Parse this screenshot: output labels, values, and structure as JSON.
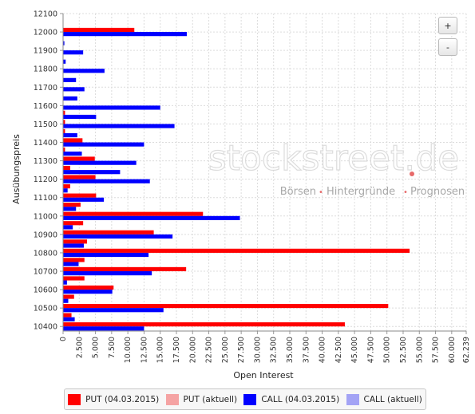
{
  "controls": {
    "zoom_in": "+",
    "zoom_out": "-"
  },
  "watermark": {
    "brand": "stockstreet.de",
    "tagline_parts": [
      "Börsen",
      "Hintergründe",
      "Prognosen"
    ],
    "separator": "•",
    "dot_color": "#e35050"
  },
  "colors": {
    "put_current": "#ff0000",
    "put_today": "#f5a3a3",
    "call_current": "#0000ff",
    "call_today": "#a3a3f5"
  },
  "chart_data": {
    "type": "bar",
    "orientation": "horizontal",
    "xlabel": "Open Interest",
    "ylabel": "Ausübungspreis",
    "xlim": [
      0,
      62239
    ],
    "x_ticks": [
      "0",
      "2.500",
      "5.000",
      "7.500",
      "10.000",
      "12.500",
      "15.000",
      "17.500",
      "20.000",
      "22.500",
      "25.000",
      "27.500",
      "30.000",
      "32.500",
      "35.000",
      "37.500",
      "40.000",
      "42.500",
      "45.000",
      "47.500",
      "50.000",
      "52.500",
      "55.000",
      "57.500",
      "60.000",
      "62.239"
    ],
    "y_ticks": [
      "10400",
      "10500",
      "10600",
      "10700",
      "10800",
      "10900",
      "11000",
      "11100",
      "11200",
      "11300",
      "11400",
      "11500",
      "11600",
      "11700",
      "11800",
      "11900",
      "12000",
      "12100"
    ],
    "grid": true,
    "legend_position": "bottom",
    "strikes": [
      10400,
      10450,
      10500,
      10550,
      10600,
      10650,
      10700,
      10750,
      10800,
      10850,
      10900,
      10950,
      11000,
      11050,
      11100,
      11150,
      11200,
      11250,
      11300,
      11350,
      11400,
      11450,
      11500,
      11550,
      11600,
      11650,
      11700,
      11750,
      11800,
      11850,
      11900,
      11950,
      12000
    ],
    "series": [
      {
        "name": "PUT (04.03.2015)",
        "values": [
          43500,
          1300,
          50200,
          1700,
          7800,
          3300,
          19000,
          3300,
          53500,
          3700,
          14000,
          3100,
          21600,
          2700,
          5100,
          1100,
          5000,
          1100,
          4900,
          300,
          3000,
          300,
          300,
          300,
          0,
          0,
          0,
          0,
          0,
          0,
          0,
          0,
          11000
        ]
      },
      {
        "name": "PUT (aktuell)",
        "values": []
      },
      {
        "name": "CALL (04.03.2015)",
        "values": [
          12500,
          1800,
          15500,
          800,
          7600,
          600,
          13700,
          2400,
          13200,
          3200,
          16900,
          1500,
          27300,
          2000,
          6300,
          700,
          13400,
          8800,
          11300,
          2900,
          12500,
          2200,
          17200,
          5100,
          15000,
          2200,
          3300,
          2000,
          6400,
          400,
          3100,
          200,
          19100
        ]
      },
      {
        "name": "CALL (aktuell)",
        "values": []
      }
    ]
  }
}
